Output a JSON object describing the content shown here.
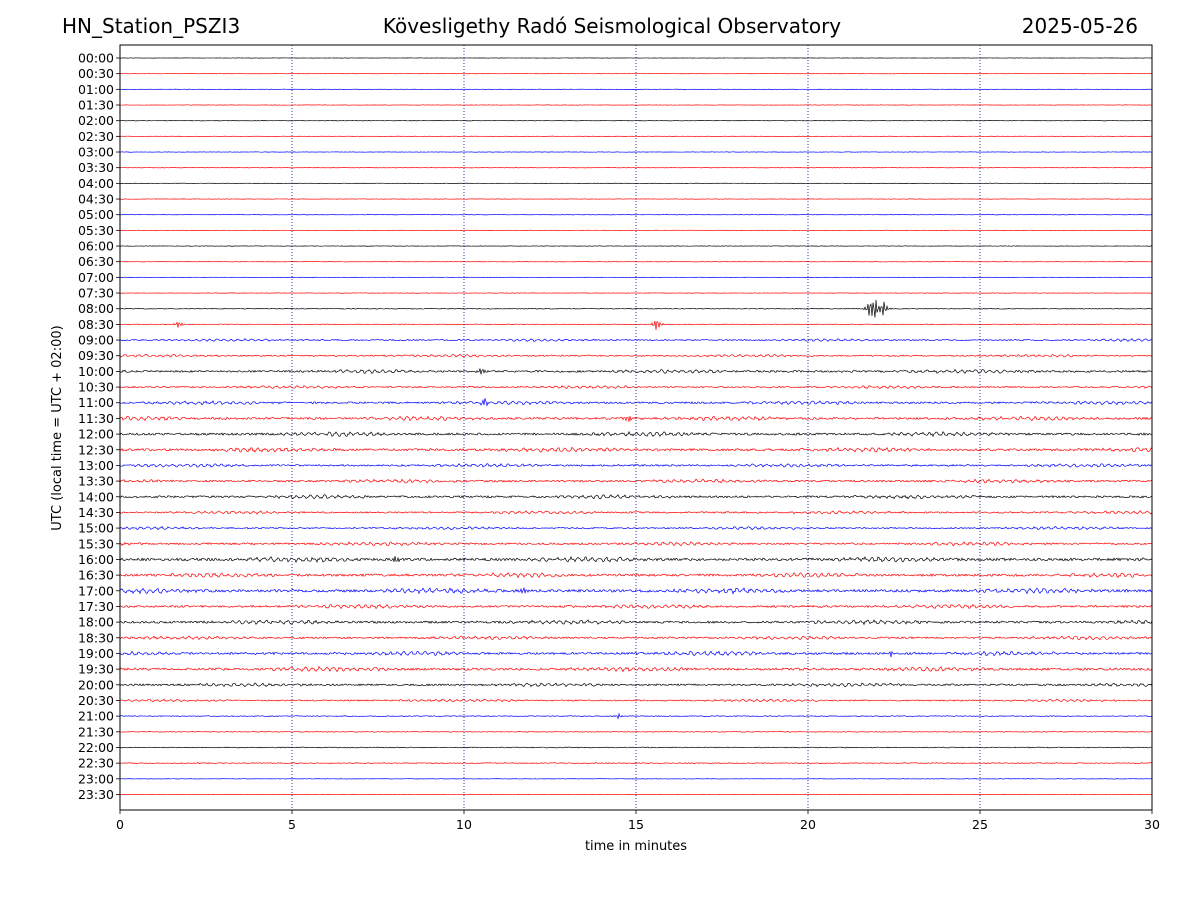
{
  "header": {
    "station": "HN_Station_PSZI3",
    "observatory": "Kövesligethy Radó Seismological Observatory",
    "date": "2025-05-26"
  },
  "chart_data": {
    "type": "seismogram_helicorder",
    "title": "Kövesligethy Radó Seismological Observatory",
    "xlabel": "time in minutes",
    "ylabel": "UTC (local time = UTC + 02:00)",
    "xlim": [
      0,
      30
    ],
    "xticks": [
      "0",
      "5",
      "10",
      "15",
      "20",
      "25",
      "30"
    ],
    "x_gridlines_minutes": [
      5,
      10,
      15,
      20,
      25
    ],
    "rows": [
      "00:00",
      "00:30",
      "01:00",
      "01:30",
      "02:00",
      "02:30",
      "03:00",
      "03:30",
      "04:00",
      "04:30",
      "05:00",
      "05:30",
      "06:00",
      "06:30",
      "07:00",
      "07:30",
      "08:00",
      "08:30",
      "09:00",
      "09:30",
      "10:00",
      "10:30",
      "11:00",
      "11:30",
      "12:00",
      "12:30",
      "13:00",
      "13:30",
      "14:00",
      "14:30",
      "15:00",
      "15:30",
      "16:00",
      "16:30",
      "17:00",
      "17:30",
      "18:00",
      "18:30",
      "19:00",
      "19:30",
      "20:00",
      "20:30",
      "21:00",
      "21:30",
      "22:00",
      "22:30",
      "23:00",
      "23:30"
    ],
    "trace_colors": [
      "#000000",
      "#ff0000",
      "#0000ff",
      "#ff0000"
    ],
    "activity_level_by_row": [
      0.2,
      0.2,
      0.3,
      0.3,
      0.3,
      0.3,
      0.3,
      0.3,
      0.3,
      0.3,
      0.3,
      0.3,
      0.3,
      0.3,
      0.3,
      0.3,
      0.5,
      0.5,
      0.9,
      0.9,
      1.3,
      1.0,
      1.3,
      1.5,
      1.5,
      1.6,
      1.2,
      1.3,
      1.4,
      1.1,
      1.0,
      1.3,
      1.8,
      1.6,
      1.8,
      1.4,
      1.5,
      1.2,
      1.5,
      1.6,
      1.2,
      0.9,
      0.6,
      0.5,
      0.6,
      0.6,
      0.3,
      0.3
    ],
    "events": [
      {
        "row": "08:00",
        "minute": 21.8,
        "amplitude": 10
      },
      {
        "row": "08:00",
        "minute": 21.95,
        "amplitude": 11
      },
      {
        "row": "08:00",
        "minute": 22.2,
        "amplitude": 9
      },
      {
        "row": "08:30",
        "minute": 15.6,
        "amplitude": 8
      },
      {
        "row": "08:30",
        "minute": 1.7,
        "amplitude": 4
      },
      {
        "row": "10:00",
        "minute": 10.5,
        "amplitude": 4
      },
      {
        "row": "11:00",
        "minute": 10.6,
        "amplitude": 5
      },
      {
        "row": "11:30",
        "minute": 14.8,
        "amplitude": 5
      },
      {
        "row": "16:00",
        "minute": 8.0,
        "amplitude": 5
      },
      {
        "row": "17:00",
        "minute": 11.7,
        "amplitude": 5
      },
      {
        "row": "19:00",
        "minute": 22.4,
        "amplitude": 4
      },
      {
        "row": "21:00",
        "minute": 14.5,
        "amplitude": 3
      }
    ]
  }
}
